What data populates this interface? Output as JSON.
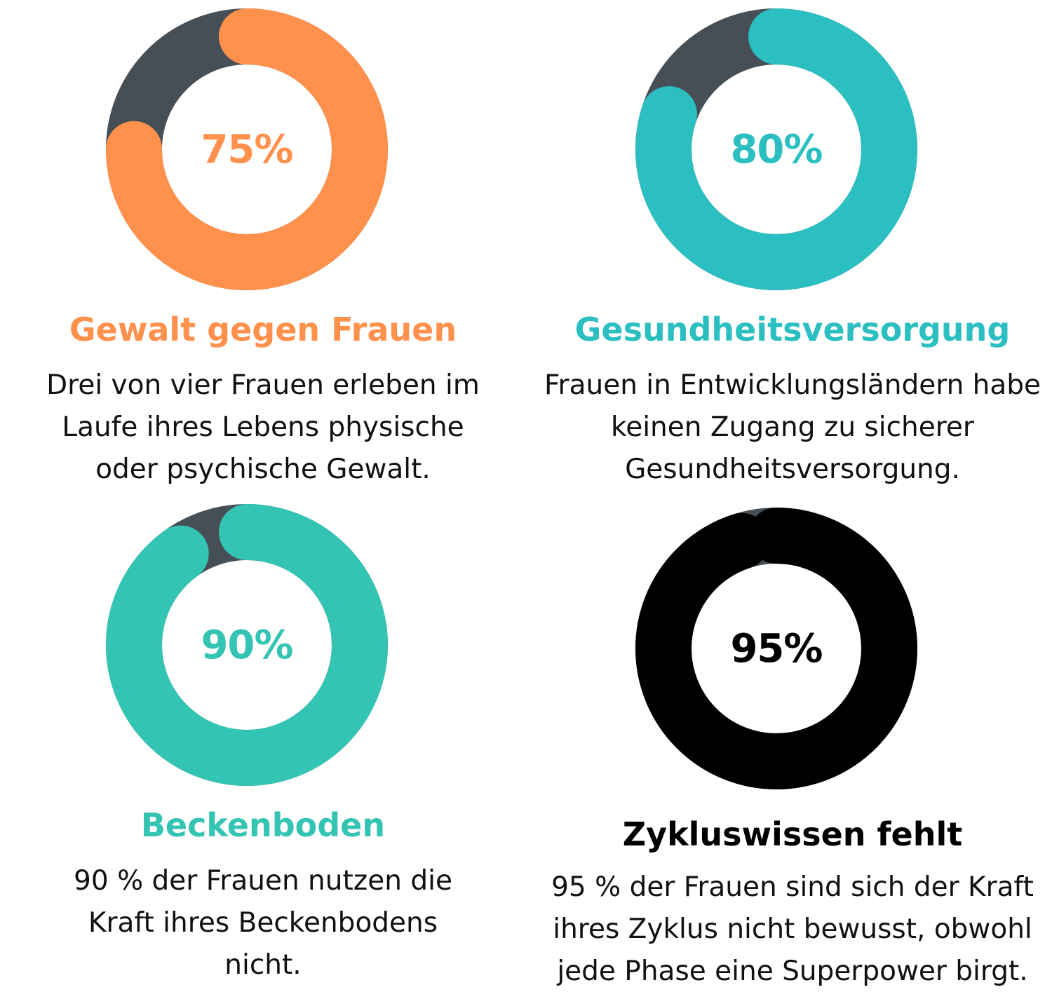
{
  "track_color": "#474F56",
  "chart_data": [
    {
      "type": "pie",
      "value": 75,
      "label": "75%",
      "title": "Gewalt gegen Frauen",
      "color": "#FF914D",
      "body": [
        "Drei von vier Frauen erleben im",
        "Laufe ihres Lebens physische",
        "oder psychische Gewalt."
      ]
    },
    {
      "type": "pie",
      "value": 80,
      "label": "80%",
      "title": "Gesundheitsversorgung",
      "color": "#2BBFC2",
      "body": [
        "Frauen in Entwicklungsländern habe",
        "keinen Zugang zu sicherer",
        "Gesundheitsversorgung."
      ]
    },
    {
      "type": "pie",
      "value": 90,
      "label": "90%",
      "title": "Beckenboden",
      "color": "#33C4B3",
      "body": [
        "90 % der Frauen nutzen die",
        "Kraft ihres Beckenbodens",
        "nicht."
      ]
    },
    {
      "type": "pie",
      "value": 95,
      "label": "95%",
      "title": "Zykluswissen fehlt",
      "color": "#000000",
      "body": [
        "95 % der Frauen sind sich der Kraft",
        "ihres Zyklus nicht bewusst, obwohl",
        "jede Phase eine Superpower birgt."
      ]
    }
  ]
}
